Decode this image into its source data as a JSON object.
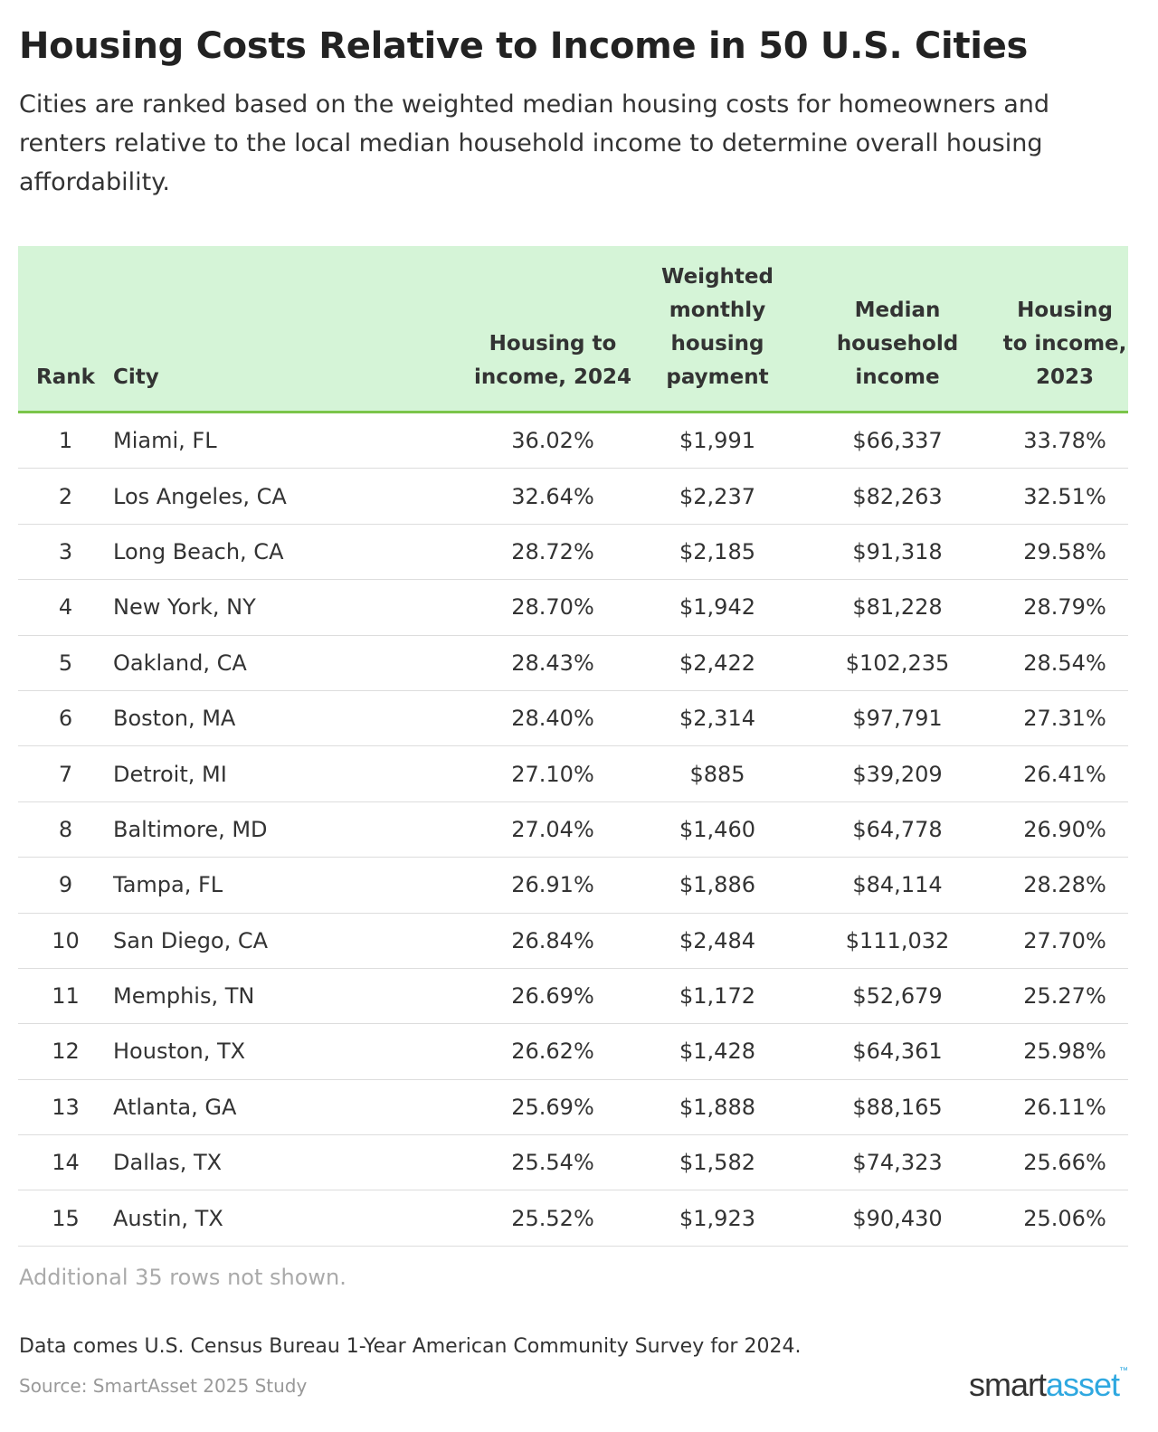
{
  "title": "Housing Costs Relative to Income in 50 U.S. Cities",
  "subtitle": "Cities are ranked based on the weighted median housing costs for homeowners and renters relative to the local median household income to determine overall housing affordability.",
  "chart_data": {
    "type": "table",
    "columns": [
      "Rank",
      "City",
      "Housing to income, 2024",
      "Weighted monthly housing payment",
      "Median household income",
      "Housing to income, 2023"
    ],
    "rows": [
      [
        "1",
        "Miami, FL",
        "36.02%",
        "$1,991",
        "$66,337",
        "33.78%"
      ],
      [
        "2",
        "Los Angeles, CA",
        "32.64%",
        "$2,237",
        "$82,263",
        "32.51%"
      ],
      [
        "3",
        "Long Beach, CA",
        "28.72%",
        "$2,185",
        "$91,318",
        "29.58%"
      ],
      [
        "4",
        "New York, NY",
        "28.70%",
        "$1,942",
        "$81,228",
        "28.79%"
      ],
      [
        "5",
        "Oakland, CA",
        "28.43%",
        "$2,422",
        "$102,235",
        "28.54%"
      ],
      [
        "6",
        "Boston, MA",
        "28.40%",
        "$2,314",
        "$97,791",
        "27.31%"
      ],
      [
        "7",
        "Detroit, MI",
        "27.10%",
        "$885",
        "$39,209",
        "26.41%"
      ],
      [
        "8",
        "Baltimore, MD",
        "27.04%",
        "$1,460",
        "$64,778",
        "26.90%"
      ],
      [
        "9",
        "Tampa, FL",
        "26.91%",
        "$1,886",
        "$84,114",
        "28.28%"
      ],
      [
        "10",
        "San Diego, CA",
        "26.84%",
        "$2,484",
        "$111,032",
        "27.70%"
      ],
      [
        "11",
        "Memphis, TN",
        "26.69%",
        "$1,172",
        "$52,679",
        "25.27%"
      ],
      [
        "12",
        "Houston, TX",
        "26.62%",
        "$1,428",
        "$64,361",
        "25.98%"
      ],
      [
        "13",
        "Atlanta, GA",
        "25.69%",
        "$1,888",
        "$88,165",
        "26.11%"
      ],
      [
        "14",
        "Dallas, TX",
        "25.54%",
        "$1,582",
        "$74,323",
        "25.66%"
      ],
      [
        "15",
        "Austin, TX",
        "25.52%",
        "$1,923",
        "$90,430",
        "25.06%"
      ]
    ]
  },
  "footer": {
    "more_rows": "Additional 35 rows not shown.",
    "notes": "Data comes U.S. Census Bureau 1-Year American Community Survey for 2024.",
    "source": "Source: SmartAsset 2025 Study",
    "logo_text": "smartasset",
    "logo_part1": "smart",
    "logo_part2": "asset",
    "logo_tm": "™"
  },
  "colors": {
    "header_bg": "#d5f4d7",
    "header_border": "#7bc54a",
    "logo_blue": "#2fa8e0"
  }
}
